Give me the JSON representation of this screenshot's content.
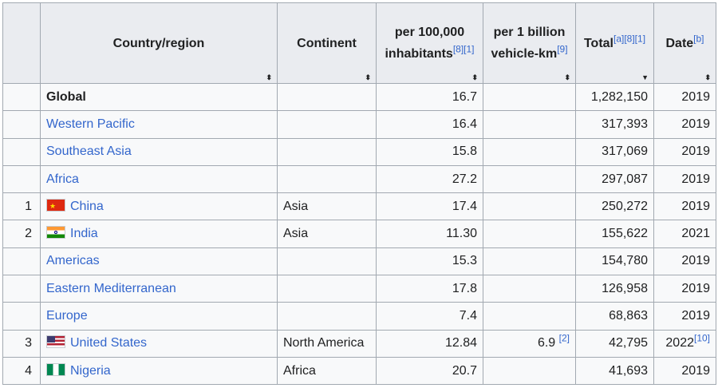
{
  "headers": {
    "rank": "",
    "country": "Country/region",
    "continent": "Continent",
    "per100k": "per 100,000 inhabitants",
    "per100k_ref": "[8][1]",
    "perbillion": "per 1 billion vehicle-km",
    "perbillion_ref": "[9]",
    "total": "Total",
    "total_ref": "[a][8][1]",
    "date": "Date",
    "date_ref": "[b]",
    "sort_icon_both": "⬍",
    "sort_icon_desc": "▼"
  },
  "rows": [
    {
      "rank": "",
      "name": "Global",
      "flag": "",
      "link": false,
      "continent": "",
      "per100k": "16.7",
      "perbillion": "",
      "perbillion_ref": "",
      "total": "1,282,150",
      "date": "2019",
      "date_ref": ""
    },
    {
      "rank": "",
      "name": "Western Pacific",
      "flag": "",
      "link": true,
      "continent": "",
      "per100k": "16.4",
      "perbillion": "",
      "perbillion_ref": "",
      "total": "317,393",
      "date": "2019",
      "date_ref": ""
    },
    {
      "rank": "",
      "name": "Southeast Asia",
      "flag": "",
      "link": true,
      "continent": "",
      "per100k": "15.8",
      "perbillion": "",
      "perbillion_ref": "",
      "total": "317,069",
      "date": "2019",
      "date_ref": ""
    },
    {
      "rank": "",
      "name": "Africa",
      "flag": "",
      "link": true,
      "continent": "",
      "per100k": "27.2",
      "perbillion": "",
      "perbillion_ref": "",
      "total": "297,087",
      "date": "2019",
      "date_ref": ""
    },
    {
      "rank": "1",
      "name": "China",
      "flag": "china-flag-icon",
      "link": true,
      "continent": "Asia",
      "per100k": "17.4",
      "perbillion": "",
      "perbillion_ref": "",
      "total": "250,272",
      "date": "2019",
      "date_ref": ""
    },
    {
      "rank": "2",
      "name": "India",
      "flag": "india-flag-icon",
      "link": true,
      "continent": "Asia",
      "per100k": "11.30",
      "perbillion": "",
      "perbillion_ref": "",
      "total": "155,622",
      "date": "2021",
      "date_ref": ""
    },
    {
      "rank": "",
      "name": "Americas",
      "flag": "",
      "link": true,
      "continent": "",
      "per100k": "15.3",
      "perbillion": "",
      "perbillion_ref": "",
      "total": "154,780",
      "date": "2019",
      "date_ref": ""
    },
    {
      "rank": "",
      "name": "Eastern Mediterranean",
      "flag": "",
      "link": true,
      "continent": "",
      "per100k": "17.8",
      "perbillion": "",
      "perbillion_ref": "",
      "total": "126,958",
      "date": "2019",
      "date_ref": ""
    },
    {
      "rank": "",
      "name": "Europe",
      "flag": "",
      "link": true,
      "continent": "",
      "per100k": "7.4",
      "perbillion": "",
      "perbillion_ref": "",
      "total": "68,863",
      "date": "2019",
      "date_ref": ""
    },
    {
      "rank": "3",
      "name": "United States",
      "flag": "us-flag-icon",
      "link": true,
      "continent": "North America",
      "per100k": "12.84",
      "perbillion": "6.9",
      "perbillion_ref": "[2]",
      "total": "42,795",
      "date": "2022",
      "date_ref": "[10]"
    },
    {
      "rank": "4",
      "name": "Nigeria",
      "flag": "nigeria-flag-icon",
      "link": true,
      "continent": "Africa",
      "per100k": "20.7",
      "perbillion": "",
      "perbillion_ref": "",
      "total": "41,693",
      "date": "2019",
      "date_ref": ""
    }
  ]
}
